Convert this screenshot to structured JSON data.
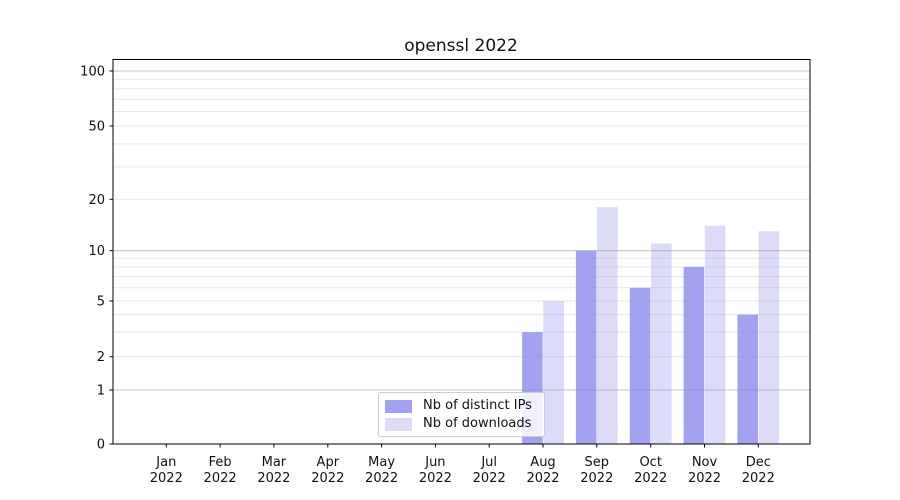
{
  "title": "openssl 2022",
  "legend": {
    "items": [
      {
        "label": "Nb of distinct IPs"
      },
      {
        "label": "Nb of downloads"
      }
    ],
    "position": "lower center"
  },
  "y_axis": {
    "tick_values": [
      0,
      1,
      2,
      5,
      10,
      20,
      50,
      100
    ],
    "major_gridlines": [
      1,
      10,
      100
    ],
    "minor_gridlines": [
      2,
      3,
      4,
      5,
      6,
      7,
      8,
      9,
      20,
      30,
      40,
      50,
      60,
      70,
      80,
      90
    ]
  },
  "colors": {
    "series_fills": [
      "rgba(131,131,235,0.75)",
      "rgba(131,131,235,0.28)"
    ],
    "grid_minor": "#e8e8e8",
    "grid_major": "#c6c6c6",
    "axis_line": "#000000",
    "text": "#111111",
    "legend_border": "#cccccc"
  },
  "chart_data": {
    "type": "bar",
    "title": "openssl 2022",
    "categories": [
      "Jan 2022",
      "Feb 2022",
      "Mar 2022",
      "Apr 2022",
      "May 2022",
      "Jun 2022",
      "Jul 2022",
      "Aug 2022",
      "Sep 2022",
      "Oct 2022",
      "Nov 2022",
      "Dec 2022"
    ],
    "series": [
      {
        "name": "Nb of distinct IPs",
        "values": [
          0,
          0,
          0,
          0,
          0,
          0,
          0,
          3,
          10,
          6,
          8,
          4
        ]
      },
      {
        "name": "Nb of downloads",
        "values": [
          0,
          0,
          0,
          0,
          0,
          0,
          0,
          5,
          18,
          11,
          14,
          13
        ]
      }
    ],
    "xlabel": "",
    "ylabel": "",
    "yscale": "log-like (ticks 0,1,2,5,10,20,50,100)",
    "ylim": [
      0,
      116
    ],
    "grid": true,
    "legend_position": "lower center"
  }
}
